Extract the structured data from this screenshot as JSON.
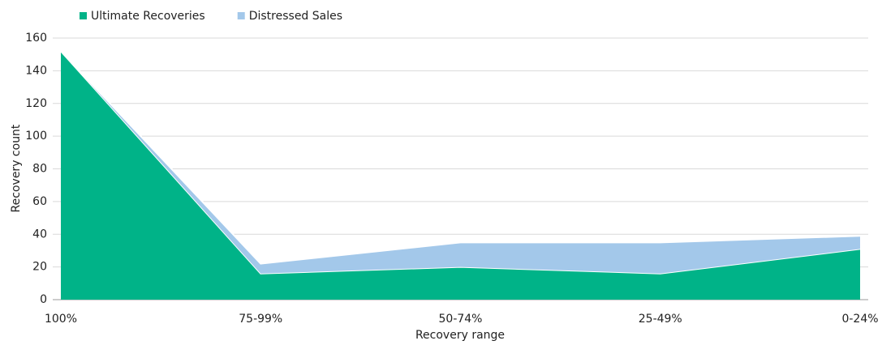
{
  "chart_data": {
    "type": "area",
    "stacked": true,
    "categories": [
      "100%",
      "75-99%",
      "50-74%",
      "25-49%",
      "0-24%"
    ],
    "series": [
      {
        "name": "Ultimate Recoveries",
        "color": "#00b388",
        "values": [
          152,
          16,
          20,
          16,
          31
        ]
      },
      {
        "name": "Distressed Sales",
        "color": "#a3c8ea",
        "values": [
          0,
          6,
          15,
          19,
          8
        ]
      }
    ],
    "ylim": [
      0,
      160
    ],
    "yticks": [
      0,
      20,
      40,
      60,
      80,
      100,
      120,
      140,
      160
    ],
    "grid": true,
    "y_label": "Recovery count",
    "x_label": "Recovery range",
    "legend": "top-left"
  }
}
